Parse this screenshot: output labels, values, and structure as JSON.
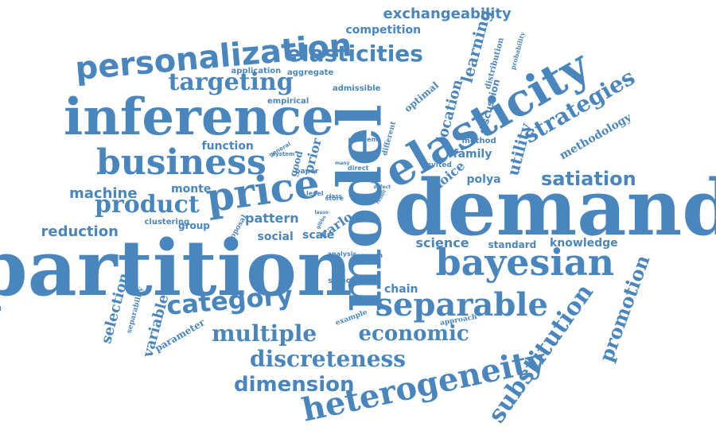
{
  "colors": {
    "word": "#4A86BE",
    "background": "#ffffff"
  },
  "words": [
    {
      "text": "demand"
    },
    {
      "text": "partition"
    },
    {
      "text": "model"
    },
    {
      "text": "inference"
    },
    {
      "text": "elasticity"
    },
    {
      "text": "bayesian"
    },
    {
      "text": "personalization"
    },
    {
      "text": "heterogeneity"
    },
    {
      "text": "business"
    },
    {
      "text": "price"
    },
    {
      "text": "separable"
    },
    {
      "text": "category"
    },
    {
      "text": "substitution"
    },
    {
      "text": "discreteness"
    },
    {
      "text": "economic"
    },
    {
      "text": "multiple"
    },
    {
      "text": "elasticities"
    },
    {
      "text": "targeting"
    },
    {
      "text": "strategies"
    },
    {
      "text": "dimension"
    },
    {
      "text": "product"
    },
    {
      "text": "promotion"
    },
    {
      "text": "satiation"
    },
    {
      "text": "exchangeability"
    },
    {
      "text": "reduction"
    },
    {
      "text": "machine"
    },
    {
      "text": "learning"
    },
    {
      "text": "location"
    },
    {
      "text": "utility"
    },
    {
      "text": "selection"
    },
    {
      "text": "variable"
    },
    {
      "text": "methodology"
    },
    {
      "text": "choice"
    },
    {
      "text": "competition"
    },
    {
      "text": "pattern"
    },
    {
      "text": "monte"
    },
    {
      "text": "function"
    },
    {
      "text": "carlo"
    },
    {
      "text": "science"
    },
    {
      "text": "knowledge"
    },
    {
      "text": "family"
    },
    {
      "text": "social"
    },
    {
      "text": "scale"
    },
    {
      "text": "polya"
    },
    {
      "text": "chain"
    },
    {
      "text": "group"
    },
    {
      "text": "method"
    },
    {
      "text": "discussion"
    },
    {
      "text": "standard"
    },
    {
      "text": "optimal"
    },
    {
      "text": "prior"
    },
    {
      "text": "good"
    },
    {
      "text": "aggregate"
    },
    {
      "text": "application"
    },
    {
      "text": "admissible"
    },
    {
      "text": "empirical"
    },
    {
      "text": "distribution"
    },
    {
      "text": "probability"
    },
    {
      "text": "parameter"
    },
    {
      "text": "separability"
    },
    {
      "text": "clustering"
    },
    {
      "text": "proposal"
    },
    {
      "text": "structure"
    },
    {
      "text": "example"
    },
    {
      "text": "approach"
    },
    {
      "text": "invited"
    },
    {
      "text": "different"
    },
    {
      "text": "problem"
    },
    {
      "text": "paper"
    },
    {
      "text": "direct"
    },
    {
      "text": "data"
    },
    {
      "text": "level"
    },
    {
      "text": "store"
    },
    {
      "text": "class"
    },
    {
      "text": "analysis"
    },
    {
      "text": "common"
    },
    {
      "text": "present"
    },
    {
      "text": "general"
    },
    {
      "text": "system"
    },
    {
      "text": "many"
    },
    {
      "text": "defect"
    },
    {
      "text": "result"
    },
    {
      "text": "initial"
    },
    {
      "text": "gibbs"
    },
    {
      "text": "lasso"
    },
    {
      "text": "appl"
    }
  ]
}
